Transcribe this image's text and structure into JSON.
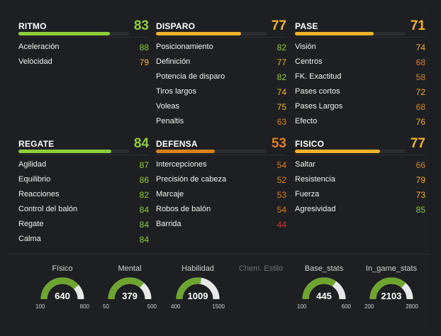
{
  "colors": {
    "green": "#8fce3b",
    "yellow": "#f2b32b",
    "orange": "#d9821f",
    "red": "#d03a2f",
    "track": "#2c2d31",
    "gauge_fill": "#6ea52e",
    "gauge_track": "#e8e8e8"
  },
  "categories": [
    {
      "id": "ritmo",
      "title": "RITMO",
      "value": "83",
      "fill": 0.83,
      "color": "#8fce3b",
      "stats": [
        {
          "name": "Aceleración",
          "value": "88",
          "color": "#8fce3b"
        },
        {
          "name": "Velocidad",
          "value": "79",
          "color": "#f2b32b"
        }
      ]
    },
    {
      "id": "disparo",
      "title": "DISPARO",
      "value": "77",
      "fill": 0.77,
      "color": "#f2b32b",
      "stats": [
        {
          "name": "Posicionamiento",
          "value": "82",
          "color": "#8fce3b"
        },
        {
          "name": "Definición",
          "value": "77",
          "color": "#f2b32b"
        },
        {
          "name": "Potencia de disparo",
          "value": "82",
          "color": "#8fce3b"
        },
        {
          "name": "Tiros largos",
          "value": "74",
          "color": "#f2b32b"
        },
        {
          "name": "Voleas",
          "value": "75",
          "color": "#f2b32b"
        },
        {
          "name": "Penaltis",
          "value": "63",
          "color": "#d9821f"
        }
      ]
    },
    {
      "id": "pase",
      "title": "PASE",
      "value": "71",
      "fill": 0.71,
      "color": "#f2b32b",
      "stats": [
        {
          "name": "Visión",
          "value": "74",
          "color": "#f2b32b"
        },
        {
          "name": "Centros",
          "value": "68",
          "color": "#d9821f"
        },
        {
          "name": "FK. Exactitud",
          "value": "58",
          "color": "#d9821f"
        },
        {
          "name": "Pases cortos",
          "value": "72",
          "color": "#f2b32b"
        },
        {
          "name": "Pases Largos",
          "value": "68",
          "color": "#d9821f"
        },
        {
          "name": "Efecto",
          "value": "76",
          "color": "#f2b32b"
        }
      ]
    },
    {
      "id": "regate",
      "title": "REGATE",
      "value": "84",
      "fill": 0.84,
      "color": "#8fce3b",
      "stats": [
        {
          "name": "Agilidad",
          "value": "87",
          "color": "#8fce3b"
        },
        {
          "name": "Equilibrio",
          "value": "86",
          "color": "#8fce3b"
        },
        {
          "name": "Reacciones",
          "value": "82",
          "color": "#8fce3b"
        },
        {
          "name": "Control del balón",
          "value": "84",
          "color": "#8fce3b"
        },
        {
          "name": "Regate",
          "value": "84",
          "color": "#8fce3b"
        },
        {
          "name": "Calma",
          "value": "84",
          "color": "#8fce3b"
        }
      ]
    },
    {
      "id": "defensa",
      "title": "DEFENSA",
      "value": "53",
      "fill": 0.53,
      "color": "#d9821f",
      "stats": [
        {
          "name": "Intercepciones",
          "value": "54",
          "color": "#d9821f"
        },
        {
          "name": "Precisión de cabeza",
          "value": "52",
          "color": "#d9821f"
        },
        {
          "name": "Marcaje",
          "value": "53",
          "color": "#d9821f"
        },
        {
          "name": "Robos de balón",
          "value": "54",
          "color": "#d9821f"
        },
        {
          "name": "Barrida",
          "value": "44",
          "color": "#d03a2f"
        }
      ]
    },
    {
      "id": "fisico",
      "title": "FISICO",
      "value": "77",
      "fill": 0.77,
      "color": "#f2b32b",
      "stats": [
        {
          "name": "Saltar",
          "value": "66",
          "color": "#d9821f"
        },
        {
          "name": "Resistencia",
          "value": "79",
          "color": "#f2b32b"
        },
        {
          "name": "Fuerza",
          "value": "73",
          "color": "#f2b32b"
        },
        {
          "name": "Agresividad",
          "value": "85",
          "color": "#8fce3b"
        }
      ]
    }
  ],
  "gauges": [
    {
      "id": "fisico",
      "label": "Físico",
      "value": "640",
      "min": "100",
      "max": "800",
      "fill": 0.771
    },
    {
      "id": "mental",
      "label": "Mental",
      "value": "379",
      "min": "50",
      "max": "500",
      "fill": 0.731
    },
    {
      "id": "habilidad",
      "label": "Habilidad",
      "value": "1009",
      "min": "400",
      "max": "1500",
      "fill": 0.554
    },
    {
      "id": "chem",
      "label": "Chem. Estilo",
      "dim": true
    },
    {
      "id": "base",
      "label": "Base_stats",
      "value": "445",
      "min": "100",
      "max": "600",
      "fill": 0.69
    },
    {
      "id": "ingame",
      "label": "In_game_stats",
      "value": "2103",
      "min": "200",
      "max": "2800",
      "fill": 0.732
    }
  ]
}
